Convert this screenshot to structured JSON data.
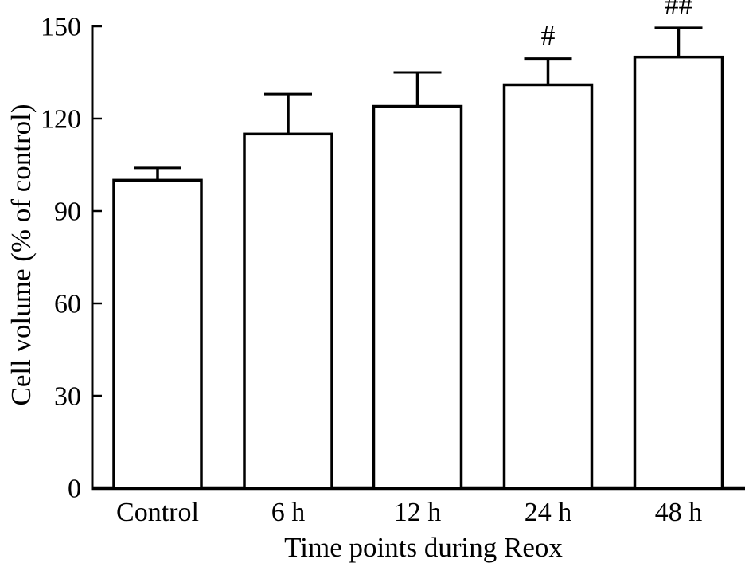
{
  "figure": {
    "background": "#ffffff",
    "ink": "#000000"
  },
  "chart_data": {
    "type": "bar",
    "title": "",
    "categories": [
      "Control",
      "6 h",
      "12 h",
      "24 h",
      "48 h"
    ],
    "values": [
      100,
      115,
      124,
      131,
      140
    ],
    "errors_upper": [
      4,
      13,
      11,
      8.5,
      9.5
    ],
    "significance_marks": [
      "",
      "",
      "",
      "#",
      "##"
    ],
    "xlabel": "Time points during Reox",
    "ylabel": "Cell volume (% of control)",
    "ylim": [
      0,
      150
    ],
    "yticks": [
      0,
      30,
      60,
      90,
      120,
      150
    ],
    "grid": false,
    "legend": "none",
    "bar_fill": "#ffffff",
    "bar_stroke": "#000000",
    "error_bar_style": "upper-only-with-cap"
  }
}
